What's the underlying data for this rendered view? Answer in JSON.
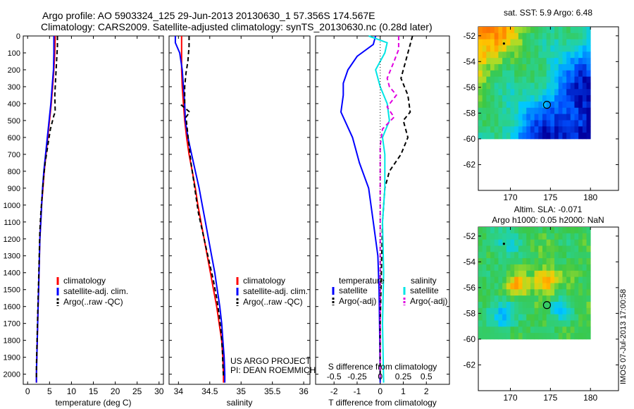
{
  "header": {
    "title_line1": "Argo profile: AO 5903324_125 29-Jun-2013 20130630_1 57.356S 174.567E",
    "title_line2": "Climatology: CARS2009. Satellite-adjusted climatology: synTS_20130630.nc (0.28d later)"
  },
  "chart_data": [
    {
      "type": "line",
      "id": "temperature",
      "xlabel": "temperature (deg C)",
      "ylabel": "",
      "xlim": [
        -1,
        31
      ],
      "ylim": [
        2060,
        0
      ],
      "xticks": [
        0,
        5,
        10,
        15,
        20,
        25,
        30
      ],
      "yticks": [
        0,
        100,
        200,
        300,
        400,
        500,
        600,
        700,
        800,
        900,
        1000,
        1100,
        1200,
        1300,
        1400,
        1500,
        1600,
        1700,
        1800,
        1900,
        2000
      ],
      "legend": [
        "climatology",
        "satellite-adj. clim.",
        "Argo(..raw -QC)"
      ],
      "series": [
        {
          "name": "climatology",
          "color": "#ff0000",
          "dash": "",
          "points": [
            [
              6.3,
              0
            ],
            [
              6.2,
              100
            ],
            [
              6.0,
              200
            ],
            [
              5.7,
              300
            ],
            [
              5.4,
              400
            ],
            [
              5.0,
              500
            ],
            [
              4.6,
              600
            ],
            [
              4.2,
              700
            ],
            [
              3.8,
              800
            ],
            [
              3.5,
              900
            ],
            [
              3.2,
              1000
            ],
            [
              3.0,
              1100
            ],
            [
              2.8,
              1200
            ],
            [
              2.7,
              1300
            ],
            [
              2.6,
              1400
            ],
            [
              2.5,
              1500
            ],
            [
              2.4,
              1600
            ],
            [
              2.3,
              1700
            ],
            [
              2.2,
              1800
            ],
            [
              2.1,
              1900
            ],
            [
              2.0,
              2000
            ],
            [
              2.0,
              2050
            ]
          ]
        },
        {
          "name": "satellite-adj. clim.",
          "color": "#0000ff",
          "dash": "",
          "points": [
            [
              6.0,
              0
            ],
            [
              6.0,
              100
            ],
            [
              5.9,
              200
            ],
            [
              5.6,
              300
            ],
            [
              5.3,
              400
            ],
            [
              4.9,
              500
            ],
            [
              4.5,
              600
            ],
            [
              4.1,
              700
            ],
            [
              3.7,
              800
            ],
            [
              3.4,
              900
            ],
            [
              3.2,
              1000
            ],
            [
              3.0,
              1100
            ],
            [
              2.8,
              1200
            ],
            [
              2.7,
              1300
            ],
            [
              2.6,
              1400
            ],
            [
              2.5,
              1500
            ],
            [
              2.4,
              1600
            ],
            [
              2.3,
              1700
            ],
            [
              2.2,
              1800
            ],
            [
              2.1,
              1900
            ],
            [
              2.0,
              2000
            ],
            [
              2.0,
              2050
            ]
          ]
        },
        {
          "name": "Argo(..raw -QC)",
          "color": "#000000",
          "dash": "6,4",
          "points": [
            [
              6.8,
              0
            ],
            [
              6.8,
              60
            ],
            [
              6.6,
              150
            ],
            [
              6.4,
              250
            ],
            [
              6.2,
              350
            ],
            [
              6.3,
              450
            ],
            [
              6.0,
              470
            ],
            [
              5.2,
              550
            ],
            [
              4.6,
              650
            ],
            [
              4.0,
              750
            ],
            [
              3.6,
              850
            ],
            [
              3.3,
              950
            ],
            [
              3.0,
              1050
            ],
            [
              2.8,
              1150
            ],
            [
              2.7,
              1250
            ],
            [
              2.6,
              1350
            ],
            [
              2.5,
              1450
            ],
            [
              2.4,
              1550
            ],
            [
              2.3,
              1650
            ],
            [
              2.2,
              1750
            ],
            [
              2.1,
              1850
            ],
            [
              2.0,
              1950
            ],
            [
              2.0,
              2020
            ]
          ]
        }
      ]
    },
    {
      "type": "line",
      "id": "salinity",
      "xlabel": "salinity",
      "xlim": [
        33.85,
        36.1
      ],
      "ylim": [
        2060,
        0
      ],
      "xticks": [
        34,
        34.5,
        35,
        35.5,
        36
      ],
      "legend": [
        "climatology",
        "satellite-adj. clim.",
        "Argo(..raw -QC)"
      ],
      "annotation": [
        "US ARGO PROJECT",
        "PI: DEAN ROEMMICH"
      ],
      "series": [
        {
          "name": "climatology",
          "color": "#ff0000",
          "dash": "",
          "points": [
            [
              34.05,
              0
            ],
            [
              34.05,
              100
            ],
            [
              34.05,
              200
            ],
            [
              34.06,
              300
            ],
            [
              34.08,
              400
            ],
            [
              34.1,
              500
            ],
            [
              34.13,
              600
            ],
            [
              34.17,
              700
            ],
            [
              34.22,
              800
            ],
            [
              34.27,
              900
            ],
            [
              34.31,
              1000
            ],
            [
              34.36,
              1100
            ],
            [
              34.41,
              1200
            ],
            [
              34.46,
              1300
            ],
            [
              34.51,
              1400
            ],
            [
              34.56,
              1500
            ],
            [
              34.61,
              1600
            ],
            [
              34.65,
              1700
            ],
            [
              34.69,
              1800
            ],
            [
              34.71,
              1900
            ],
            [
              34.72,
              2000
            ],
            [
              34.72,
              2050
            ]
          ]
        },
        {
          "name": "satellite-adj. clim.",
          "color": "#0000ff",
          "dash": "",
          "points": [
            [
              33.95,
              0
            ],
            [
              33.95,
              40
            ],
            [
              34.02,
              100
            ],
            [
              34.06,
              200
            ],
            [
              34.08,
              300
            ],
            [
              34.1,
              400
            ],
            [
              34.11,
              500
            ],
            [
              34.15,
              600
            ],
            [
              34.21,
              700
            ],
            [
              34.27,
              800
            ],
            [
              34.33,
              900
            ],
            [
              34.38,
              1000
            ],
            [
              34.43,
              1100
            ],
            [
              34.48,
              1200
            ],
            [
              34.53,
              1300
            ],
            [
              34.58,
              1400
            ],
            [
              34.62,
              1500
            ],
            [
              34.66,
              1600
            ],
            [
              34.69,
              1700
            ],
            [
              34.71,
              1800
            ],
            [
              34.73,
              1900
            ],
            [
              34.74,
              2000
            ],
            [
              34.74,
              2050
            ]
          ]
        },
        {
          "name": "Argo(..raw -QC)",
          "color": "#000000",
          "dash": "6,4",
          "points": [
            [
              34.17,
              0
            ],
            [
              34.17,
              60
            ],
            [
              34.15,
              150
            ],
            [
              34.12,
              220
            ],
            [
              34.1,
              300
            ],
            [
              34.1,
              400
            ],
            [
              34.05,
              410
            ],
            [
              34.18,
              450
            ],
            [
              34.12,
              480
            ],
            [
              34.14,
              550
            ],
            [
              34.17,
              650
            ],
            [
              34.2,
              750
            ],
            [
              34.24,
              850
            ],
            [
              34.28,
              950
            ],
            [
              34.32,
              1050
            ],
            [
              34.38,
              1150
            ],
            [
              34.44,
              1250
            ],
            [
              34.5,
              1350
            ],
            [
              34.56,
              1450
            ],
            [
              34.61,
              1550
            ],
            [
              34.65,
              1650
            ],
            [
              34.68,
              1750
            ],
            [
              34.7,
              1850
            ],
            [
              34.71,
              1950
            ],
            [
              34.72,
              2020
            ]
          ]
        }
      ]
    },
    {
      "type": "line",
      "id": "difference",
      "xlabel": "T difference from climatology",
      "xlabel2": "S difference from climatology",
      "xlim": [
        -2.8,
        3.0
      ],
      "ylim": [
        2060,
        0
      ],
      "xticks": [
        -2,
        -1,
        0,
        1,
        2
      ],
      "xticks2_labels": [
        "-0.5",
        "-0.25",
        "0",
        "0.25",
        "0.5"
      ],
      "xticks2_pos": [
        -2,
        -1,
        0,
        1,
        2
      ],
      "legend_heads": [
        "temperature",
        "salinity"
      ],
      "legend": [
        "satellite",
        "Argo(-adj)",
        "satellite",
        "Argo(-adj)"
      ],
      "series": [
        {
          "name": "T satellite",
          "color": "#0000ff",
          "dash": "",
          "points": [
            [
              -0.2,
              0
            ],
            [
              -0.3,
              50
            ],
            [
              -1.0,
              120
            ],
            [
              -1.4,
              200
            ],
            [
              -1.6,
              280
            ],
            [
              -1.6,
              350
            ],
            [
              -1.7,
              450
            ],
            [
              -1.2,
              600
            ],
            [
              -0.9,
              750
            ],
            [
              -0.5,
              900
            ],
            [
              -0.3,
              1100
            ],
            [
              -0.1,
              1300
            ],
            [
              -0.05,
              1500
            ],
            [
              -0.02,
              1800
            ],
            [
              0.0,
              2050
            ]
          ]
        },
        {
          "name": "T Argo(-adj)",
          "color": "#000000",
          "dash": "6,4",
          "points": [
            [
              1.4,
              0
            ],
            [
              1.3,
              50
            ],
            [
              1.1,
              150
            ],
            [
              0.9,
              250
            ],
            [
              1.2,
              350
            ],
            [
              1.3,
              450
            ],
            [
              1.0,
              500
            ],
            [
              1.2,
              600
            ],
            [
              0.9,
              700
            ],
            [
              0.4,
              800
            ],
            [
              0.2,
              900
            ],
            [
              0.1,
              1100
            ],
            [
              0.05,
              1400
            ],
            [
              0.0,
              1700
            ],
            [
              0.0,
              2020
            ]
          ]
        },
        {
          "name": "S satellite",
          "color": "#00e5e5",
          "dash": "",
          "points": [
            [
              -0.5,
              0
            ],
            [
              0.3,
              40
            ],
            [
              0.2,
              100
            ],
            [
              -0.2,
              200
            ],
            [
              0.0,
              300
            ],
            [
              0.3,
              400
            ],
            [
              0.4,
              500
            ],
            [
              0.1,
              600
            ],
            [
              0.2,
              700
            ],
            [
              0.2,
              900
            ],
            [
              0.1,
              1100
            ],
            [
              0.15,
              1400
            ],
            [
              0.1,
              1700
            ],
            [
              0.15,
              2050
            ]
          ]
        },
        {
          "name": "S Argo(-adj)",
          "color": "#e000e0",
          "dash": "6,4",
          "points": [
            [
              0.8,
              0
            ],
            [
              0.8,
              80
            ],
            [
              0.6,
              150
            ],
            [
              0.3,
              250
            ],
            [
              0.4,
              300
            ],
            [
              0.7,
              350
            ],
            [
              0.3,
              420
            ],
            [
              0.6,
              480
            ],
            [
              0.1,
              550
            ],
            [
              0.0,
              650
            ],
            [
              0.0,
              800
            ],
            [
              0.0,
              1000
            ],
            [
              0.0,
              1300
            ],
            [
              0.0,
              1700
            ],
            [
              0.0,
              2020
            ]
          ]
        }
      ]
    },
    {
      "type": "heatmap",
      "id": "sst-map",
      "title": "sat. SST: 5.9  Argo: 6.48",
      "xlim": [
        166,
        183.5
      ],
      "ylim": [
        -64,
        -51.3
      ],
      "xticks": [
        170,
        175,
        180
      ],
      "yticks": [
        -52,
        -54,
        -56,
        -58,
        -60,
        -62
      ],
      "data_extent": {
        "lon": [
          166,
          180
        ],
        "lat": [
          -60,
          -51.3
        ]
      },
      "float_position": [
        174.567,
        -57.356
      ],
      "reference_dot": [
        169.2,
        -52.6
      ]
    },
    {
      "type": "heatmap",
      "id": "sla-map",
      "title": "Altim. SLA: -0.071",
      "subtitle": "Argo h1000: 0.05 h2000: NaN",
      "xlim": [
        166,
        183.5
      ],
      "ylim": [
        -64,
        -51.3
      ],
      "xticks": [
        170,
        175,
        180
      ],
      "yticks": [
        -52,
        -54,
        -56,
        -58,
        -60,
        -62
      ],
      "data_extent": {
        "lon": [
          166,
          180
        ],
        "lat": [
          -60,
          -51.3
        ]
      },
      "float_position": [
        174.567,
        -57.356
      ],
      "reference_dot": [
        169.2,
        -52.6
      ]
    }
  ],
  "footer": {
    "stamp": "IMOS 07-Jul-2013 17:00:58"
  }
}
